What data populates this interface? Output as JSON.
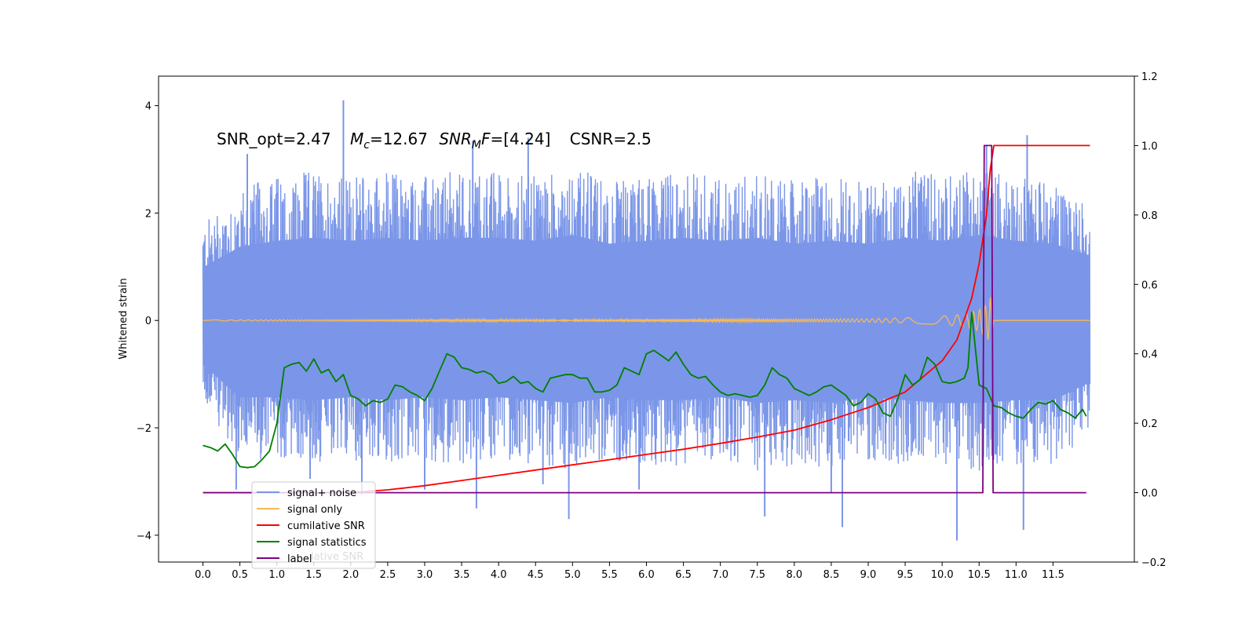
{
  "chart_data": {
    "type": "line",
    "title": "",
    "xlabel": "",
    "ylabel": "Whitened strain",
    "xlim": [
      -0.6,
      12.6
    ],
    "ylim": [
      -4.5,
      4.55
    ],
    "y2lim": [
      -0.2,
      1.2
    ],
    "x_ticks": [
      0.0,
      0.5,
      1.0,
      1.5,
      2.0,
      2.5,
      3.0,
      3.5,
      4.0,
      4.5,
      5.0,
      5.5,
      6.0,
      6.5,
      7.0,
      7.5,
      8.0,
      8.5,
      9.0,
      9.5,
      10.0,
      10.5,
      11.0,
      11.5
    ],
    "x_tick_labels": [
      "0.0",
      "0.5",
      "1.0",
      "1.5",
      "2.0",
      "2.5",
      "3.0",
      "3.5",
      "4.0",
      "4.5",
      "5.0",
      "5.5",
      "6.0",
      "6.5",
      "7.0",
      "7.5",
      "8.0",
      "8.5",
      "9.0",
      "9.5",
      "10.0",
      "10.5",
      "11.0",
      "11.5"
    ],
    "y_ticks": [
      -4,
      -2,
      0,
      2,
      4
    ],
    "y_tick_labels": [
      "−4",
      "−2",
      "0",
      "2",
      "4"
    ],
    "y2_ticks": [
      -0.2,
      0.0,
      0.2,
      0.4,
      0.6,
      0.8,
      1.0,
      1.2
    ],
    "y2_tick_labels": [
      "−0.2",
      "0.0",
      "0.2",
      "0.4",
      "0.6",
      "0.8",
      "1.0",
      "1.2"
    ],
    "annotation": {
      "snr_opt": "SNR_opt=2.47",
      "mc_symbol": "M",
      "mc_sub": "c",
      "mc_value": "=12.67",
      "snr_mf_symbol": "SNR",
      "snr_mf_sub": "M",
      "snr_mf_f": "F",
      "snr_mf_value": "=[4.24]",
      "csnr": "CSNR=2.5"
    },
    "legend": {
      "placement": "lower-left",
      "entries": [
        "signal+ noise",
        "signal only",
        "cumilative SNR",
        "signal statistics",
        "label"
      ],
      "hidden_text": "lative SNR"
    },
    "noise_envelope": {
      "x": [
        0.0,
        0.5,
        1.0,
        1.5,
        2.0,
        2.5,
        3.0,
        3.5,
        4.0,
        4.5,
        5.0,
        5.5,
        6.0,
        6.5,
        7.0,
        7.5,
        8.0,
        8.5,
        9.0,
        9.5,
        10.0,
        10.5,
        11.0,
        11.5,
        12.0
      ],
      "upper": [
        1.8,
        2.5,
        2.7,
        2.8,
        2.7,
        2.8,
        2.7,
        2.8,
        2.8,
        2.7,
        2.9,
        2.6,
        2.7,
        2.8,
        2.7,
        2.8,
        2.6,
        2.7,
        2.6,
        2.8,
        2.7,
        2.9,
        2.7,
        2.6,
        2.2
      ],
      "lower": [
        -1.5,
        -2.6,
        -2.6,
        -2.7,
        -2.6,
        -2.7,
        -2.6,
        -2.7,
        -2.6,
        -2.7,
        -2.8,
        -2.6,
        -2.7,
        -2.7,
        -2.6,
        -2.8,
        -2.7,
        -2.8,
        -2.6,
        -2.7,
        -2.8,
        -2.8,
        -2.7,
        -2.7,
        -2.1
      ],
      "spikes": [
        {
          "x": 1.9,
          "y": 4.1
        },
        {
          "x": 3.7,
          "y": -3.5
        },
        {
          "x": 4.95,
          "y": -3.7
        },
        {
          "x": 7.6,
          "y": -3.65
        },
        {
          "x": 8.65,
          "y": -3.85
        },
        {
          "x": 10.2,
          "y": -4.1
        },
        {
          "x": 11.15,
          "y": 3.45
        },
        {
          "x": 11.1,
          "y": -3.9
        },
        {
          "x": 0.45,
          "y": -3.15
        },
        {
          "x": 1.45,
          "y": -2.95
        },
        {
          "x": 2.15,
          "y": -3.25
        },
        {
          "x": 3.0,
          "y": -3.15
        },
        {
          "x": 4.6,
          "y": -3.05
        },
        {
          "x": 5.9,
          "y": -3.15
        },
        {
          "x": 8.5,
          "y": -3.2
        },
        {
          "x": 0.6,
          "y": 3.1
        },
        {
          "x": 3.65,
          "y": 3.35
        },
        {
          "x": 4.4,
          "y": 3.4
        },
        {
          "x": 10.6,
          "y": 3.25
        }
      ]
    },
    "series": [
      {
        "name": "signal+ noise",
        "color": "#7b96e8",
        "axis": "left",
        "note": "dense noise band drawn from noise_envelope"
      },
      {
        "name": "signal only",
        "color": "#f5b85a",
        "axis": "left",
        "x": [
          0.0,
          9.0,
          9.5,
          10.0,
          10.3,
          10.5,
          10.6,
          10.65,
          10.7
        ],
        "amplitude": [
          0.01,
          0.03,
          0.05,
          0.08,
          0.12,
          0.2,
          0.3,
          0.45,
          0.0
        ]
      },
      {
        "name": "cumilative SNR",
        "color": "#ff0000",
        "axis": "right",
        "x": [
          0.0,
          0.5,
          1.0,
          1.5,
          2.0,
          2.5,
          3.0,
          3.5,
          4.0,
          4.5,
          5.0,
          5.5,
          6.0,
          6.5,
          7.0,
          7.5,
          8.0,
          8.5,
          9.0,
          9.5,
          10.0,
          10.2,
          10.4,
          10.5,
          10.6,
          10.65,
          10.7,
          11.0,
          11.5,
          12.0
        ],
        "y": [
          0.0,
          0.0,
          0.0,
          0.0,
          0.0,
          0.008,
          0.02,
          0.035,
          0.05,
          0.065,
          0.08,
          0.095,
          0.11,
          0.125,
          0.142,
          0.16,
          0.18,
          0.21,
          0.245,
          0.29,
          0.38,
          0.44,
          0.56,
          0.66,
          0.8,
          0.93,
          1.0,
          1.0,
          1.0,
          1.0
        ]
      },
      {
        "name": "signal statistics",
        "color": "#007f00",
        "axis": "right",
        "x": [
          0.0,
          0.1,
          0.2,
          0.3,
          0.4,
          0.5,
          0.6,
          0.7,
          0.8,
          0.9,
          1.0,
          1.1,
          1.2,
          1.3,
          1.4,
          1.5,
          1.6,
          1.7,
          1.8,
          1.9,
          2.0,
          2.1,
          2.2,
          2.3,
          2.4,
          2.5,
          2.6,
          2.7,
          2.8,
          2.9,
          3.0,
          3.1,
          3.2,
          3.3,
          3.4,
          3.5,
          3.6,
          3.7,
          3.8,
          3.9,
          4.0,
          4.1,
          4.2,
          4.3,
          4.4,
          4.5,
          4.6,
          4.7,
          4.8,
          4.9,
          5.0,
          5.1,
          5.2,
          5.3,
          5.4,
          5.5,
          5.6,
          5.7,
          5.8,
          5.9,
          6.0,
          6.1,
          6.2,
          6.3,
          6.4,
          6.5,
          6.6,
          6.7,
          6.8,
          6.9,
          7.0,
          7.1,
          7.2,
          7.3,
          7.4,
          7.5,
          7.6,
          7.7,
          7.8,
          7.9,
          8.0,
          8.1,
          8.2,
          8.3,
          8.4,
          8.5,
          8.6,
          8.7,
          8.8,
          8.9,
          9.0,
          9.1,
          9.2,
          9.3,
          9.4,
          9.5,
          9.6,
          9.7,
          9.8,
          9.9,
          10.0,
          10.1,
          10.2,
          10.3,
          10.35,
          10.4,
          10.5,
          10.6,
          10.7,
          10.8,
          10.9,
          11.0,
          11.1,
          11.2,
          11.3,
          11.4,
          11.5,
          11.6,
          11.7,
          11.8,
          11.9,
          11.95
        ],
        "y": [
          0.136,
          0.13,
          0.12,
          0.14,
          0.11,
          0.075,
          0.072,
          0.075,
          0.095,
          0.12,
          0.2,
          0.36,
          0.37,
          0.375,
          0.35,
          0.385,
          0.345,
          0.355,
          0.32,
          0.34,
          0.28,
          0.27,
          0.25,
          0.265,
          0.26,
          0.27,
          0.31,
          0.305,
          0.29,
          0.28,
          0.265,
          0.3,
          0.35,
          0.4,
          0.39,
          0.36,
          0.355,
          0.345,
          0.35,
          0.34,
          0.315,
          0.32,
          0.335,
          0.315,
          0.32,
          0.3,
          0.29,
          0.33,
          0.335,
          0.34,
          0.34,
          0.33,
          0.33,
          0.29,
          0.29,
          0.295,
          0.31,
          0.36,
          0.35,
          0.34,
          0.4,
          0.41,
          0.395,
          0.38,
          0.405,
          0.37,
          0.34,
          0.33,
          0.335,
          0.31,
          0.29,
          0.28,
          0.285,
          0.28,
          0.275,
          0.28,
          0.31,
          0.36,
          0.34,
          0.33,
          0.3,
          0.29,
          0.28,
          0.29,
          0.305,
          0.31,
          0.295,
          0.28,
          0.25,
          0.26,
          0.285,
          0.27,
          0.23,
          0.22,
          0.27,
          0.34,
          0.31,
          0.325,
          0.39,
          0.37,
          0.32,
          0.315,
          0.32,
          0.33,
          0.36,
          0.52,
          0.31,
          0.3,
          0.25,
          0.245,
          0.23,
          0.22,
          0.215,
          0.24,
          0.26,
          0.255,
          0.265,
          0.24,
          0.23,
          0.215,
          0.24,
          0.22
        ]
      },
      {
        "name": "label",
        "color": "#800080",
        "axis": "right",
        "x": [
          0.0,
          10.55,
          10.57,
          10.67,
          10.69,
          11.95
        ],
        "y": [
          0.0,
          0.0,
          1.0,
          1.0,
          0.0,
          0.0
        ]
      }
    ],
    "grid": false,
    "legend_placement": "lower-left"
  }
}
